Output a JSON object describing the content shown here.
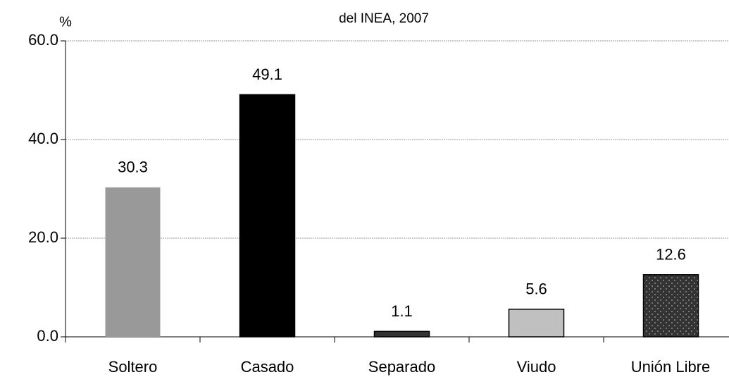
{
  "chart_data": {
    "type": "bar",
    "title": "del INEA, 2007",
    "ylabel": "%",
    "categories": [
      "Soltero",
      "Casado",
      "Separado",
      "Viudo",
      "Unión Libre"
    ],
    "values": [
      30.3,
      49.1,
      1.1,
      5.6,
      12.6
    ],
    "colors": [
      "#999999",
      "#000000",
      "#333333",
      "#c0c0c0",
      "#333333"
    ],
    "patterns": [
      null,
      null,
      null,
      null,
      "dots"
    ],
    "ylim": [
      0,
      60
    ],
    "yticks": [
      {
        "value": 0,
        "label": "0.0"
      },
      {
        "value": 20,
        "label": "20.0"
      },
      {
        "value": 40,
        "label": "40.0"
      },
      {
        "value": 60,
        "label": "60.0"
      }
    ],
    "grid": true
  }
}
